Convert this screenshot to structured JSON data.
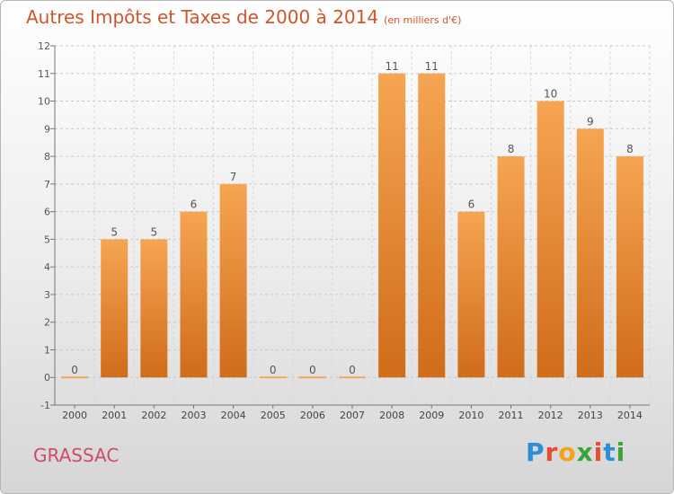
{
  "title": "Autres Impôts et Taxes de 2000 à 2014",
  "unit": "(en milliers d'€)",
  "commune": "GRASSAC",
  "logo": {
    "letters": [
      "P",
      "r",
      "o",
      "x",
      "i",
      "t",
      "i"
    ],
    "colors": [
      "#2a8fd6",
      "#e84b2f",
      "#f3a21a",
      "#3aa33a",
      "#e84b2f",
      "#2a8fd6",
      "#3aa33a"
    ]
  },
  "colors": {
    "bar_top": "#f6a552",
    "bar_bottom": "#d06c1a",
    "title": "#d0552a"
  },
  "chart_data": {
    "type": "bar",
    "title": "Autres Impôts et Taxes de 2000 à 2014",
    "categories": [
      "2000",
      "2001",
      "2002",
      "2003",
      "2004",
      "2005",
      "2006",
      "2007",
      "2008",
      "2009",
      "2010",
      "2011",
      "2012",
      "2013",
      "2014"
    ],
    "values": [
      0,
      5,
      5,
      6,
      7,
      0,
      0,
      0,
      11,
      11,
      6,
      8,
      10,
      9,
      8
    ],
    "yticks": [
      "-1",
      "0",
      "1",
      "2",
      "3",
      "4",
      "5",
      "6",
      "7",
      "8",
      "9",
      "10",
      "11",
      "12"
    ],
    "ylim": [
      -1,
      12
    ],
    "grid": true,
    "legend": "none"
  }
}
